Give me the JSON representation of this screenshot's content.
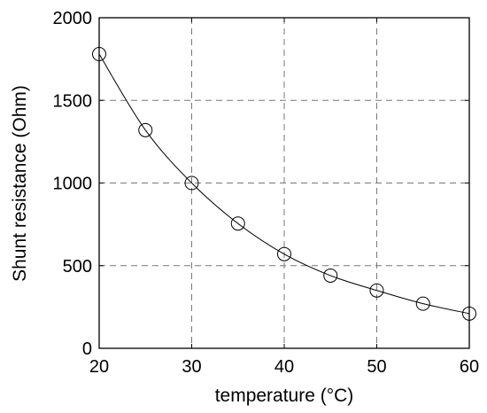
{
  "chart_data": {
    "type": "line",
    "title": "",
    "xlabel": "temperature  (°C)",
    "ylabel": "Shunt resistance (Ohm)",
    "xlim": [
      20,
      60
    ],
    "ylim": [
      0,
      2000
    ],
    "xticks": [
      20,
      30,
      40,
      50,
      60
    ],
    "yticks": [
      0,
      500,
      1000,
      1500,
      2000
    ],
    "grid": true,
    "legend": "none",
    "series": [
      {
        "marker": "circle",
        "line": "solid",
        "color": "#000000",
        "x": [
          20,
          25,
          30,
          35,
          40,
          45,
          50,
          55,
          60
        ],
        "y": [
          1780,
          1320,
          1000,
          755,
          570,
          440,
          350,
          270,
          210
        ]
      }
    ]
  }
}
